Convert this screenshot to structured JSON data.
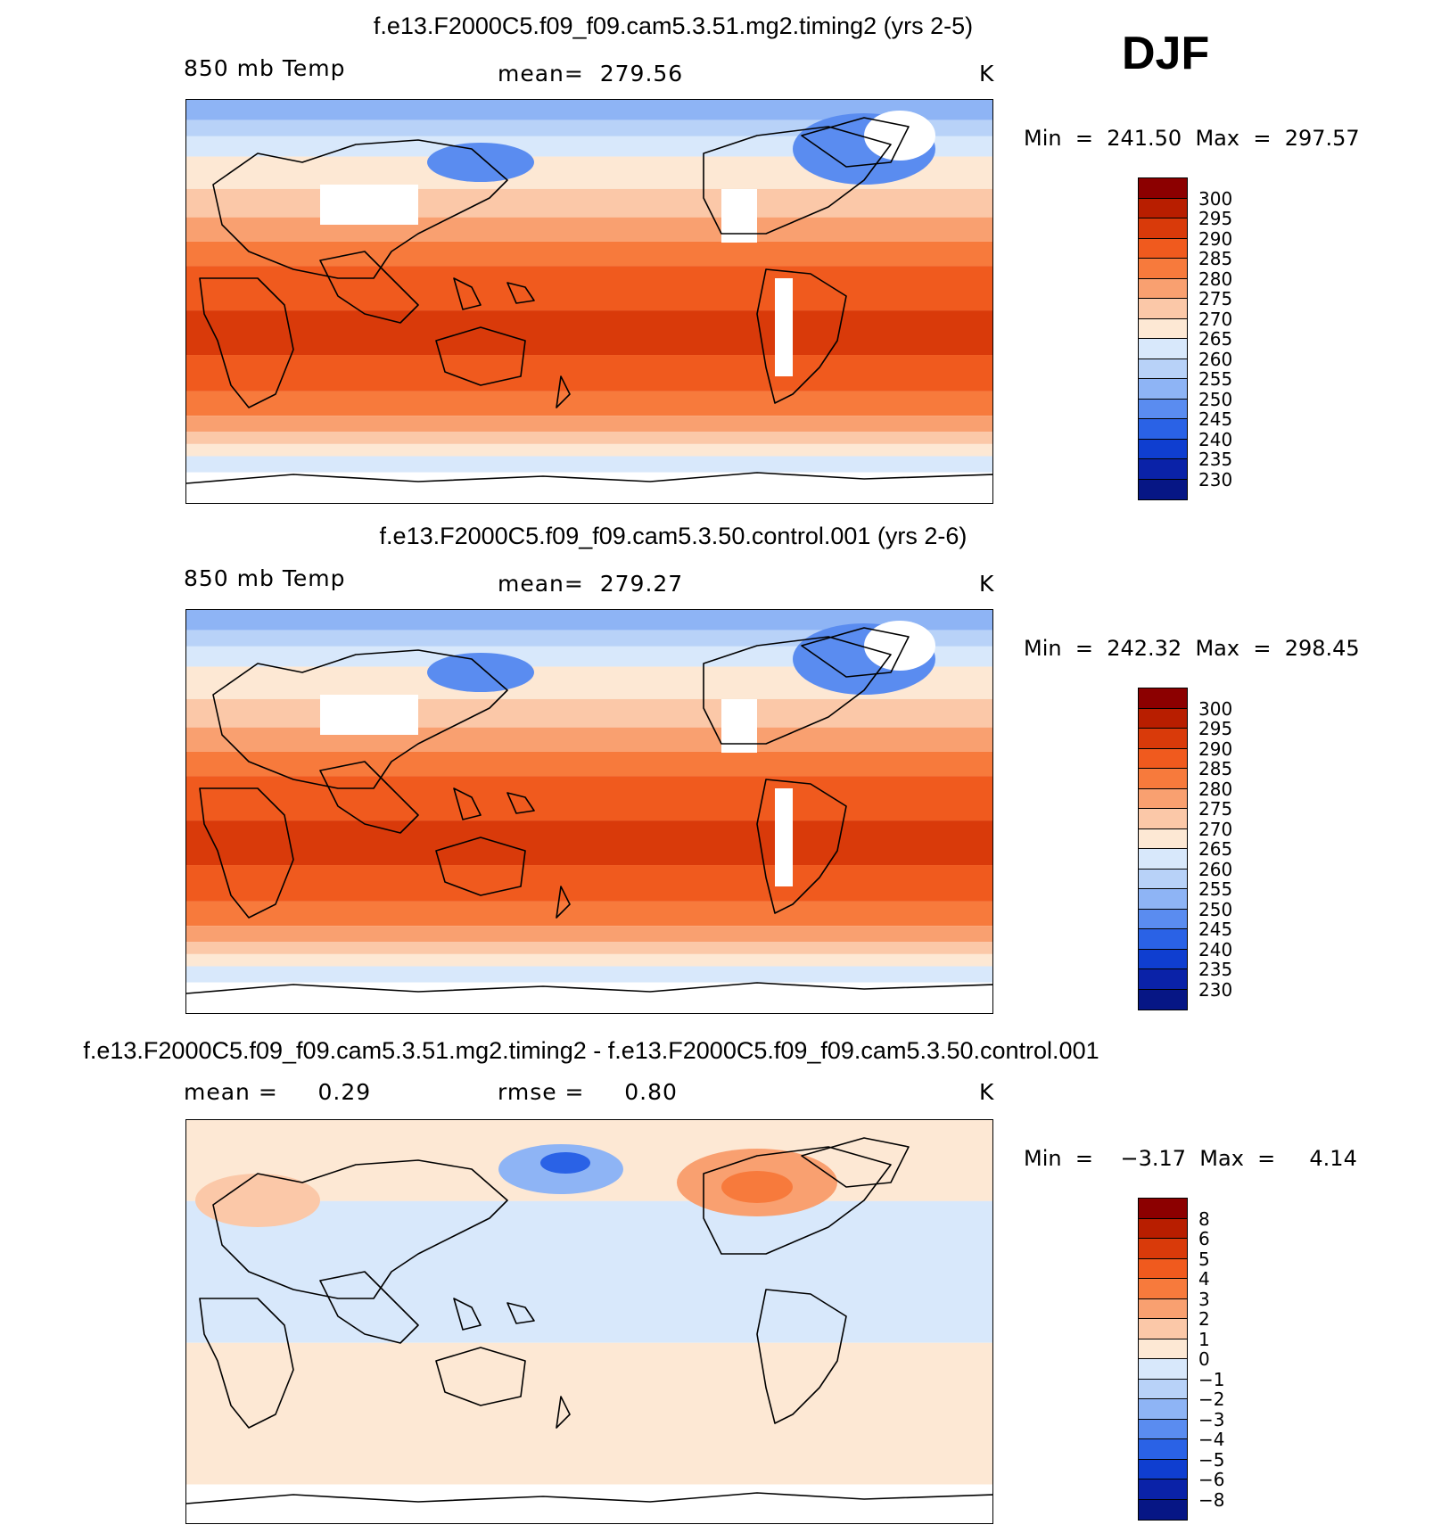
{
  "season": "DJF",
  "panels": [
    {
      "title": "f.e13.F2000C5.f09_f09.cam5.3.51.mg2.timing2 (yrs 2-5)",
      "left_label": "850 mb Temp",
      "center_label": "mean=  279.56",
      "units": "K",
      "stats": "Min  =  241.50  Max  =  297.57",
      "variant": "full"
    },
    {
      "title": "f.e13.F2000C5.f09_f09.cam5.3.50.control.001 (yrs 2-6)",
      "left_label": "850 mb Temp",
      "center_label": "mean=  279.27",
      "units": "K",
      "stats": "Min  =  242.32  Max  =  298.45",
      "variant": "full"
    },
    {
      "title": "f.e13.F2000C5.f09_f09.cam5.3.51.mg2.timing2 - f.e13.F2000C5.f09_f09.cam5.3.50.control.001",
      "left_label": "mean =     0.29",
      "center_label": "rmse =     0.80",
      "units": "K",
      "stats": "Min  =    −3.17  Max  =     4.14",
      "variant": "diff"
    }
  ],
  "colorbars": {
    "temperature": {
      "labels": [
        "300",
        "295",
        "290",
        "285",
        "280",
        "275",
        "270",
        "265",
        "260",
        "255",
        "250",
        "245",
        "240",
        "235",
        "230"
      ],
      "colors": [
        "#8c0000",
        "#b81e00",
        "#d93a0a",
        "#f05a1e",
        "#f77a3c",
        "#f9a070",
        "#fbc8a8",
        "#fde8d4",
        "#d8e8fb",
        "#b8d2f8",
        "#8eb4f5",
        "#5a8cf0",
        "#2a62e6",
        "#0f3ed0",
        "#0a22a8",
        "#061685"
      ]
    },
    "difference": {
      "labels": [
        "8",
        "6",
        "5",
        "4",
        "3",
        "2",
        "1",
        "0",
        "−1",
        "−2",
        "−3",
        "−4",
        "−5",
        "−6",
        "−8"
      ],
      "colors": [
        "#8c0000",
        "#b81e00",
        "#d93a0a",
        "#f05a1e",
        "#f77a3c",
        "#f9a070",
        "#fbc8a8",
        "#fde8d4",
        "#d8e8fb",
        "#b8d2f8",
        "#8eb4f5",
        "#5a8cf0",
        "#2a62e6",
        "#0f3ed0",
        "#0a22a8",
        "#061685"
      ]
    }
  }
}
